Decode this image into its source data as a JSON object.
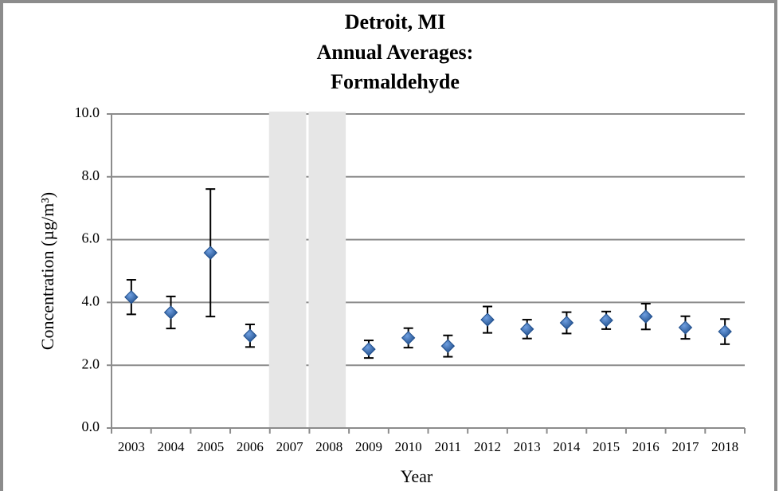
{
  "chart_data": {
    "type": "errorbar-scatter",
    "title": [
      "Detroit, MI",
      "Annual Averages:",
      "Formaldehyde"
    ],
    "x_label": "Year",
    "y_label": "Concentration (µg/m³)",
    "categories": [
      "2003",
      "2004",
      "2005",
      "2006",
      "2007",
      "2008",
      "2009",
      "2010",
      "2011",
      "2012",
      "2013",
      "2014",
      "2015",
      "2016",
      "2017",
      "2018"
    ],
    "values": [
      4.17,
      3.68,
      5.58,
      2.94,
      null,
      null,
      2.51,
      2.87,
      2.61,
      3.45,
      3.15,
      3.35,
      3.43,
      3.55,
      3.2,
      3.07
    ],
    "errors": [
      0.55,
      0.51,
      2.03,
      0.36,
      null,
      null,
      0.28,
      0.31,
      0.34,
      0.42,
      0.3,
      0.34,
      0.28,
      0.41,
      0.36,
      0.4
    ],
    "color": "#1f4e8c",
    "ylim": [
      0,
      10
    ],
    "yticks": [
      {
        "value": 0,
        "label": "0.0"
      },
      {
        "value": 2,
        "label": "2.0"
      },
      {
        "value": 4,
        "label": "4.0"
      },
      {
        "value": 6,
        "label": "6.0"
      },
      {
        "value": 8,
        "label": "8.0"
      },
      {
        "value": 10,
        "label": "10.0"
      }
    ],
    "grid": true
  }
}
